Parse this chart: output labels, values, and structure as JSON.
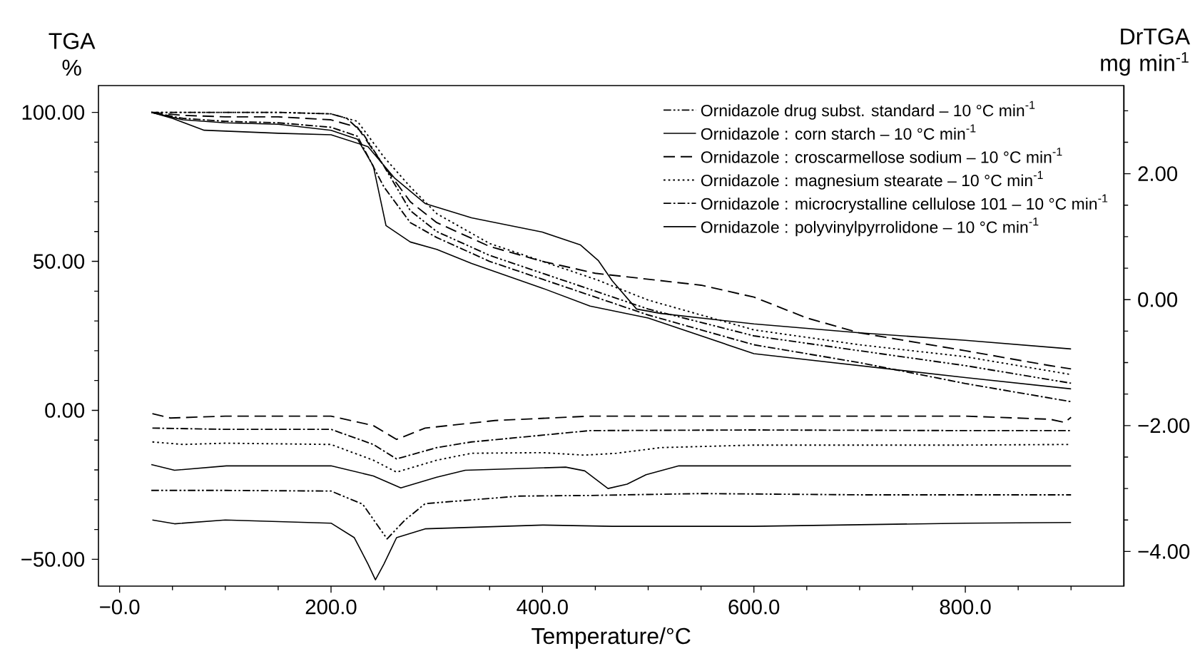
{
  "chart_data": {
    "type": "line",
    "xlabel": "Temperature/°C",
    "ylabel": "TGA %",
    "y2label": "DrTGA mg min$^{-1}$",
    "xlim": [
      -20,
      950
    ],
    "ylim": [
      -59,
      109
    ],
    "y2lim": [
      -4.55,
      3.4
    ],
    "xticks": [
      {
        "value": 0,
        "label": "−0.0"
      },
      {
        "value": 50,
        "label": null
      },
      {
        "value": 100,
        "label": null
      },
      {
        "value": 150,
        "label": null
      },
      {
        "value": 200,
        "label": "200.0"
      },
      {
        "value": 250,
        "label": null
      },
      {
        "value": 300,
        "label": null
      },
      {
        "value": 350,
        "label": null
      },
      {
        "value": 400,
        "label": "400.0"
      },
      {
        "value": 450,
        "label": null
      },
      {
        "value": 500,
        "label": null
      },
      {
        "value": 550,
        "label": null
      },
      {
        "value": 600,
        "label": "600.0"
      },
      {
        "value": 650,
        "label": null
      },
      {
        "value": 700,
        "label": null
      },
      {
        "value": 750,
        "label": null
      },
      {
        "value": 800,
        "label": "800.0"
      },
      {
        "value": 850,
        "label": null
      },
      {
        "value": 900,
        "label": null
      }
    ],
    "yticks": [
      {
        "value": -50,
        "label": "−50.00"
      },
      {
        "value": -40,
        "label": null
      },
      {
        "value": -30,
        "label": null
      },
      {
        "value": -20,
        "label": null
      },
      {
        "value": -10,
        "label": null
      },
      {
        "value": 0,
        "label": "0.00"
      },
      {
        "value": 10,
        "label": null
      },
      {
        "value": 20,
        "label": null
      },
      {
        "value": 30,
        "label": null
      },
      {
        "value": 40,
        "label": null
      },
      {
        "value": 50,
        "label": "50.00"
      },
      {
        "value": 60,
        "label": null
      },
      {
        "value": 70,
        "label": null
      },
      {
        "value": 80,
        "label": null
      },
      {
        "value": 90,
        "label": null
      },
      {
        "value": 100,
        "label": "100.00"
      }
    ],
    "y2ticks": [
      {
        "value": -4,
        "label": "−4.00"
      },
      {
        "value": -3.5,
        "label": null
      },
      {
        "value": -3,
        "label": null
      },
      {
        "value": -2.5,
        "label": null
      },
      {
        "value": -2,
        "label": "−2.00"
      },
      {
        "value": -1.5,
        "label": null
      },
      {
        "value": -1,
        "label": null
      },
      {
        "value": -0.5,
        "label": null
      },
      {
        "value": 0,
        "label": "0.00"
      },
      {
        "value": 0.5,
        "label": null
      },
      {
        "value": 1,
        "label": null
      },
      {
        "value": 1.5,
        "label": null
      },
      {
        "value": 2,
        "label": "2.00"
      },
      {
        "value": 2.5,
        "label": null
      },
      {
        "value": 3,
        "label": null
      }
    ],
    "legend": "top right",
    "marker": "none",
    "series": [
      {
        "name": "Ornidazole drug subst. standard – 10 °C min$^{-1}$",
        "color": "#000000",
        "line_style": "dashdotdot",
        "x": [
          30,
          60,
          100,
          150,
          200,
          215,
          230,
          250,
          275,
          300,
          350,
          400,
          450,
          500,
          600,
          700,
          800,
          900
        ],
        "values": [
          100,
          100,
          100,
          100,
          99.5,
          98,
          93,
          82,
          67,
          60,
          52,
          46,
          40,
          34,
          25,
          20,
          15,
          9.1
        ]
      },
      {
        "name": "Ornidazole : corn starch – 10 °C min$^{-1}$",
        "color": "#000000",
        "line_style": "solid",
        "x": [
          30,
          60,
          100,
          150,
          200,
          225,
          240,
          252,
          275,
          300,
          333,
          400,
          445,
          500,
          600,
          700,
          800,
          900
        ],
        "values": [
          100,
          97.5,
          96.5,
          96,
          94,
          91,
          82,
          62,
          56.5,
          54,
          49.3,
          41,
          35,
          31,
          19,
          15,
          11,
          7.2
        ]
      },
      {
        "name": "Ornidazole : croscarmellose sodium – 10 °C min$^{-1}$",
        "color": "#000000",
        "line_style": "dashed",
        "x": [
          30,
          60,
          100,
          150,
          200,
          225,
          250,
          275,
          300,
          350,
          400,
          450,
          500,
          550,
          600,
          650,
          700,
          800,
          880,
          900
        ],
        "values": [
          100,
          99,
          98.5,
          98.5,
          97.5,
          95,
          82,
          70,
          63,
          55,
          50,
          46,
          44,
          42,
          38,
          31,
          26,
          20,
          15,
          13.9
        ]
      },
      {
        "name": "Ornidazole : magnesium stearate – 10 °C min$^{-1}$",
        "color": "#000000",
        "line_style": "dotted",
        "x": [
          30,
          60,
          100,
          150,
          200,
          225,
          250,
          275,
          300,
          350,
          400,
          450,
          500,
          600,
          700,
          800,
          900
        ],
        "values": [
          100,
          100,
          100,
          100,
          99.5,
          97,
          85,
          75,
          66,
          56,
          50,
          44,
          37,
          27,
          22,
          18,
          12
        ]
      },
      {
        "name": "Ornidazole : microcrystalline cellulose 101 – 10 °C min$^{-1}$",
        "color": "#000000",
        "line_style": "dashdot",
        "x": [
          30,
          60,
          100,
          150,
          200,
          225,
          250,
          275,
          300,
          350,
          400,
          450,
          500,
          600,
          700,
          800,
          900
        ],
        "values": [
          100,
          98,
          97,
          96.5,
          95,
          92,
          75,
          63,
          58,
          50,
          44,
          38,
          32,
          22,
          16,
          9,
          2.9
        ]
      },
      {
        "name": "Ornidazole : polyvinylpyrrolidone – 10 °C min$^{-1}$",
        "color": "#000000",
        "line_style": "solid",
        "x": [
          30,
          50,
          80,
          150,
          200,
          235,
          260,
          289,
          333,
          400,
          436,
          453,
          466,
          489,
          512,
          600,
          700,
          800,
          900
        ],
        "values": [
          100,
          98,
          94,
          93,
          92.5,
          88.5,
          78,
          69.4,
          64.6,
          59.8,
          55.5,
          50.2,
          43.5,
          34,
          32.5,
          29,
          26,
          23.5,
          20.6
        ]
      },
      {
        "color": "#000000",
        "line_style": "dashdotdot",
        "axis": "y2",
        "x": [
          30,
          100,
          200,
          230,
          253,
          270,
          289,
          378,
          445,
          550,
          700,
          900
        ],
        "values": [
          -3.03,
          -3.03,
          -3.04,
          -3.25,
          -3.8,
          -3.5,
          -3.24,
          -3.12,
          -3.11,
          -3.08,
          -3.1,
          -3.1
        ]
      },
      {
        "color": "#000000",
        "line_style": "solid",
        "axis": "y2",
        "x": [
          31,
          52,
          100,
          200,
          222,
          235,
          242,
          250,
          262,
          289,
          400,
          466,
          600,
          800,
          900
        ],
        "values": [
          -3.5,
          -3.56,
          -3.5,
          -3.55,
          -3.78,
          -4.2,
          -4.45,
          -4.2,
          -3.78,
          -3.64,
          -3.58,
          -3.6,
          -3.6,
          -3.55,
          -3.54
        ]
      },
      {
        "color": "#000000",
        "line_style": "dashed",
        "axis": "y2",
        "x": [
          31,
          48,
          100,
          200,
          240,
          262,
          289,
          355,
          445,
          600,
          800,
          880,
          894,
          900
        ],
        "values": [
          -1.81,
          -1.88,
          -1.85,
          -1.85,
          -2.0,
          -2.22,
          -2.04,
          -1.92,
          -1.85,
          -1.85,
          -1.85,
          -1.9,
          -1.95,
          -1.87
        ]
      },
      {
        "color": "#000000",
        "line_style": "dotted",
        "axis": "y2",
        "x": [
          31,
          60,
          100,
          200,
          240,
          262,
          300,
          333,
          400,
          440,
          470,
          512,
          600,
          800,
          900
        ],
        "values": [
          -2.26,
          -2.3,
          -2.28,
          -2.3,
          -2.55,
          -2.74,
          -2.55,
          -2.44,
          -2.43,
          -2.47,
          -2.44,
          -2.35,
          -2.31,
          -2.31,
          -2.3
        ]
      },
      {
        "color": "#000000",
        "line_style": "dashdot",
        "axis": "y2",
        "x": [
          31,
          100,
          200,
          240,
          262,
          300,
          333,
          445,
          600,
          800,
          900
        ],
        "values": [
          -2.04,
          -2.06,
          -2.06,
          -2.3,
          -2.53,
          -2.35,
          -2.26,
          -2.08,
          -2.07,
          -2.08,
          -2.08
        ]
      },
      {
        "color": "#000000",
        "line_style": "solid",
        "axis": "y2",
        "x": [
          30,
          52,
          101,
          200,
          240,
          266,
          300,
          327,
          422,
          440,
          462,
          480,
          498,
          529,
          700,
          900
        ],
        "values": [
          -2.62,
          -2.71,
          -2.64,
          -2.64,
          -2.8,
          -2.99,
          -2.82,
          -2.71,
          -2.66,
          -2.72,
          -3.0,
          -2.93,
          -2.78,
          -2.64,
          -2.64,
          -2.64
        ]
      }
    ]
  }
}
